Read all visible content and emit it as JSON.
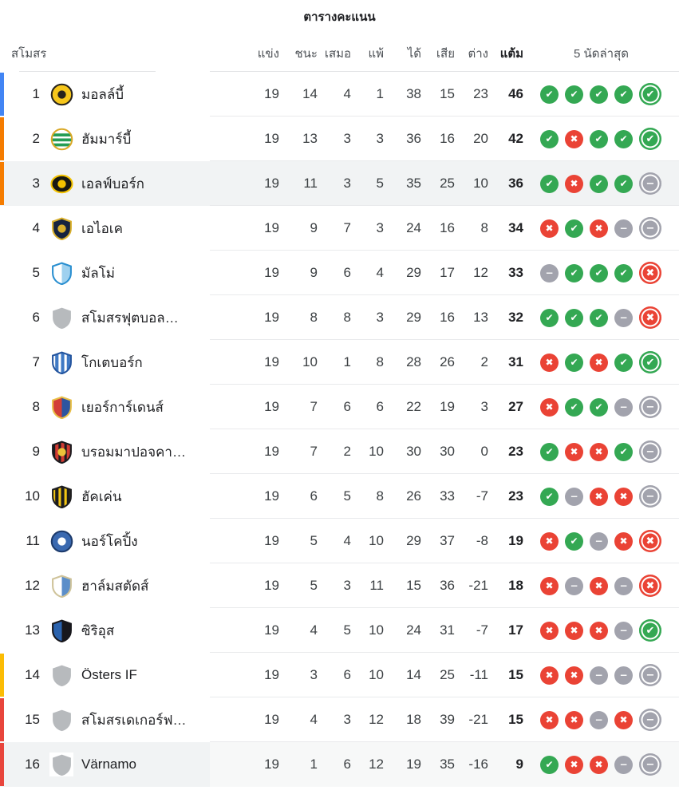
{
  "title": "ตารางคะแนน",
  "table": {
    "headers": {
      "club": "สโมสร",
      "played": "แข่ง",
      "won": "ชนะ",
      "drawn": "เสมอ",
      "lost": "แพ้",
      "gf": "ได้",
      "ga": "เสีย",
      "gd": "ต่าง",
      "pts": "แต้ม",
      "form": "5 นัดล่าสุด"
    },
    "rows": [
      {
        "rank": 1,
        "team": "มอลล์บี้",
        "played": 19,
        "won": 14,
        "drawn": 4,
        "lost": 1,
        "gf": 38,
        "ga": 15,
        "gd": 23,
        "pts": 46,
        "form": [
          "W",
          "W",
          "W",
          "W",
          "W"
        ],
        "bar": "blue",
        "logo": "mjallby",
        "highlight": null
      },
      {
        "rank": 2,
        "team": "ฮัมมาร์บี้",
        "played": 19,
        "won": 13,
        "drawn": 3,
        "lost": 3,
        "gf": 36,
        "ga": 16,
        "gd": 20,
        "pts": 42,
        "form": [
          "W",
          "L",
          "W",
          "W",
          "W"
        ],
        "bar": "orange",
        "logo": "hammarby",
        "highlight": null
      },
      {
        "rank": 3,
        "team": "เอลฟ์บอร์ก",
        "played": 19,
        "won": 11,
        "drawn": 3,
        "lost": 5,
        "gf": 35,
        "ga": 25,
        "gd": 10,
        "pts": 36,
        "form": [
          "W",
          "L",
          "W",
          "W",
          "D"
        ],
        "bar": "orange",
        "logo": "elfsborg",
        "highlight": "full"
      },
      {
        "rank": 4,
        "team": "เอไอเค",
        "played": 19,
        "won": 9,
        "drawn": 7,
        "lost": 3,
        "gf": 24,
        "ga": 16,
        "gd": 8,
        "pts": 34,
        "form": [
          "L",
          "W",
          "L",
          "D",
          "D"
        ],
        "bar": null,
        "logo": "aik",
        "highlight": null
      },
      {
        "rank": 5,
        "team": "มัลโม่",
        "played": 19,
        "won": 9,
        "drawn": 6,
        "lost": 4,
        "gf": 29,
        "ga": 17,
        "gd": 12,
        "pts": 33,
        "form": [
          "D",
          "W",
          "W",
          "W",
          "L"
        ],
        "bar": null,
        "logo": "malmo",
        "highlight": null
      },
      {
        "rank": 6,
        "team": "สโมสรฟุตบอล…",
        "played": 19,
        "won": 8,
        "drawn": 8,
        "lost": 3,
        "gf": 29,
        "ga": 16,
        "gd": 13,
        "pts": 32,
        "form": [
          "W",
          "W",
          "W",
          "D",
          "L"
        ],
        "bar": null,
        "logo": "generic",
        "highlight": null
      },
      {
        "rank": 7,
        "team": "โกเตบอร์ก",
        "played": 19,
        "won": 10,
        "drawn": 1,
        "lost": 8,
        "gf": 28,
        "ga": 26,
        "gd": 2,
        "pts": 31,
        "form": [
          "L",
          "W",
          "L",
          "W",
          "W"
        ],
        "bar": null,
        "logo": "gothenburg",
        "highlight": null
      },
      {
        "rank": 8,
        "team": "เยอร์การ์เดนส์",
        "played": 19,
        "won": 7,
        "drawn": 6,
        "lost": 6,
        "gf": 22,
        "ga": 19,
        "gd": 3,
        "pts": 27,
        "form": [
          "L",
          "W",
          "W",
          "D",
          "D"
        ],
        "bar": null,
        "logo": "djurgarden",
        "highlight": null
      },
      {
        "rank": 9,
        "team": "บรอมมาปอจคา…",
        "played": 19,
        "won": 7,
        "drawn": 2,
        "lost": 10,
        "gf": 30,
        "ga": 30,
        "gd": 0,
        "pts": 23,
        "form": [
          "W",
          "L",
          "L",
          "W",
          "D"
        ],
        "bar": null,
        "logo": "brommapojkarna",
        "highlight": null
      },
      {
        "rank": 10,
        "team": "ฮัคเค่น",
        "played": 19,
        "won": 6,
        "drawn": 5,
        "lost": 8,
        "gf": 26,
        "ga": 33,
        "gd": -7,
        "pts": 23,
        "form": [
          "W",
          "D",
          "L",
          "L",
          "D"
        ],
        "bar": null,
        "logo": "hacken",
        "highlight": null
      },
      {
        "rank": 11,
        "team": "นอร์โคปิ้ง",
        "played": 19,
        "won": 5,
        "drawn": 4,
        "lost": 10,
        "gf": 29,
        "ga": 37,
        "gd": -8,
        "pts": 19,
        "form": [
          "L",
          "W",
          "D",
          "L",
          "L"
        ],
        "bar": null,
        "logo": "norrkoping",
        "highlight": null
      },
      {
        "rank": 12,
        "team": "ฮาล์มสตัดส์",
        "played": 19,
        "won": 5,
        "drawn": 3,
        "lost": 11,
        "gf": 15,
        "ga": 36,
        "gd": -21,
        "pts": 18,
        "form": [
          "L",
          "D",
          "L",
          "D",
          "L"
        ],
        "bar": null,
        "logo": "halmstad",
        "highlight": null
      },
      {
        "rank": 13,
        "team": "ซิริอุส",
        "played": 19,
        "won": 4,
        "drawn": 5,
        "lost": 10,
        "gf": 24,
        "ga": 31,
        "gd": -7,
        "pts": 17,
        "form": [
          "L",
          "L",
          "L",
          "D",
          "W"
        ],
        "bar": null,
        "logo": "sirius",
        "highlight": null
      },
      {
        "rank": 14,
        "team": "Östers IF",
        "played": 19,
        "won": 3,
        "drawn": 6,
        "lost": 10,
        "gf": 14,
        "ga": 25,
        "gd": -11,
        "pts": 15,
        "form": [
          "L",
          "L",
          "D",
          "D",
          "D"
        ],
        "bar": "yellow",
        "logo": "generic",
        "highlight": null
      },
      {
        "rank": 15,
        "team": "สโมสรเดเกอร์ฟ…",
        "played": 19,
        "won": 4,
        "drawn": 3,
        "lost": 12,
        "gf": 18,
        "ga": 39,
        "gd": -21,
        "pts": 15,
        "form": [
          "L",
          "L",
          "D",
          "L",
          "D"
        ],
        "bar": "red",
        "logo": "generic",
        "highlight": null
      },
      {
        "rank": 16,
        "team": "Värnamo",
        "played": 19,
        "won": 1,
        "drawn": 6,
        "lost": 12,
        "gf": 19,
        "ga": 35,
        "gd": -16,
        "pts": 9,
        "form": [
          "W",
          "L",
          "L",
          "D",
          "D"
        ],
        "bar": "red",
        "logo": "generic",
        "highlight": "name"
      }
    ]
  },
  "form_glyphs": {
    "W": "✔",
    "L": "✖",
    "D": "−"
  },
  "form_colors": {
    "win": "#34a853",
    "loss": "#ea4335",
    "draw": "#a2a3ad"
  },
  "bar_colors": {
    "blue": "#4285f4",
    "orange": "#f57c00",
    "yellow": "#fbbc04",
    "red": "#e8453c"
  },
  "highlight_color": "#f1f3f4",
  "logos": {
    "mjallby": {
      "shape": "circle",
      "bg": "#f6c61b",
      "ring": "#26221c",
      "patterns": [
        {
          "type": "dot",
          "color": "#26221c"
        }
      ]
    },
    "hammarby": {
      "shape": "circle",
      "bg": "#ffffff",
      "ring": "#d9a826",
      "patterns": [
        {
          "type": "hstripes",
          "color": "#259d55"
        }
      ]
    },
    "elfsborg": {
      "shape": "oval",
      "bg": "#191913",
      "ring": "#f3c200",
      "patterns": [
        {
          "type": "dot",
          "color": "#f3c200"
        }
      ]
    },
    "aik": {
      "shape": "shield",
      "bg": "#16233f",
      "ring": "#d9b02c",
      "patterns": [
        {
          "type": "dot",
          "color": "#d9b02c"
        }
      ]
    },
    "malmo": {
      "shape": "shield",
      "bg": "#ffffff",
      "ring": "#2a8fd0",
      "patterns": [
        {
          "type": "half",
          "color": "#9fd1ef"
        }
      ]
    },
    "generic": {
      "shape": "shield",
      "bg": "#b7babd",
      "ring": null,
      "patterns": []
    },
    "gothenburg": {
      "shape": "shield",
      "bg": "#ffffff",
      "ring": "#23549e",
      "patterns": [
        {
          "type": "vstripes",
          "color": "#3f79c4"
        }
      ]
    },
    "djurgarden": {
      "shape": "shield",
      "bg": "#d23f38",
      "ring": "#e9bf47",
      "patterns": [
        {
          "type": "half",
          "color": "#2c55a0"
        }
      ]
    },
    "brommapojkarna": {
      "shape": "shield",
      "bg": "#1b1b1f",
      "ring": "#1b1b1f",
      "patterns": [
        {
          "type": "vstripes",
          "color": "#cf3a33"
        },
        {
          "type": "dot",
          "color": "#ecc239"
        }
      ]
    },
    "hacken": {
      "shape": "shield",
      "bg": "#f3c613",
      "ring": "#1d1d1f",
      "patterns": [
        {
          "type": "vstripes",
          "color": "#1d1d1f"
        }
      ]
    },
    "norrkoping": {
      "shape": "circle",
      "bg": "#3a69b0",
      "ring": "#1c3a6b",
      "patterns": [
        {
          "type": "dot",
          "color": "#ffffff"
        }
      ]
    },
    "halmstad": {
      "shape": "shield",
      "bg": "#ffffff",
      "ring": "#cfc39a",
      "patterns": [
        {
          "type": "half",
          "color": "#5b8ec9"
        }
      ]
    },
    "sirius": {
      "shape": "shield",
      "bg": "#2a62ad",
      "ring": "#17171c",
      "patterns": [
        {
          "type": "half",
          "color": "#17171c"
        }
      ]
    }
  }
}
